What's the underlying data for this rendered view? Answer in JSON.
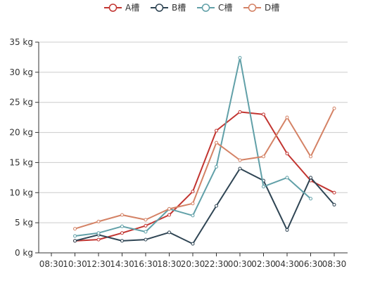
{
  "chart_data": {
    "type": "line",
    "x": [
      "08:30",
      "10:30",
      "12:30",
      "14:30",
      "16:30",
      "18:30",
      "20:30",
      "22:30",
      "00:30",
      "02:30",
      "04:30",
      "06:30",
      "08:30"
    ],
    "y_ticks": [
      "0 kg",
      "5 kg",
      "10 kg",
      "15 kg",
      "20 kg",
      "25 kg",
      "30 kg",
      "35 kg"
    ],
    "ylim": [
      0,
      35
    ],
    "grid": true,
    "legend_position": "top-center",
    "series": [
      {
        "name": "A槽",
        "color": "#c23531",
        "values": [
          null,
          2.0,
          2.2,
          3.3,
          4.5,
          6.3,
          10.2,
          20.3,
          23.4,
          23.0,
          16.5,
          12.0,
          10.0
        ]
      },
      {
        "name": "B槽",
        "color": "#2f4554",
        "values": [
          null,
          2.0,
          3.0,
          2.0,
          2.2,
          3.4,
          1.5,
          7.8,
          14.0,
          12.0,
          3.8,
          12.5,
          8.0
        ]
      },
      {
        "name": "C槽",
        "color": "#61a0a8",
        "values": [
          null,
          2.8,
          3.3,
          4.4,
          3.5,
          7.3,
          6.2,
          14.3,
          32.4,
          11.0,
          12.5,
          9.0,
          null
        ]
      },
      {
        "name": "D槽",
        "color": "#d48265",
        "values": [
          null,
          4.0,
          5.2,
          6.3,
          5.5,
          7.3,
          8.2,
          18.3,
          15.4,
          16.0,
          22.5,
          16.0,
          24.0
        ]
      }
    ]
  }
}
